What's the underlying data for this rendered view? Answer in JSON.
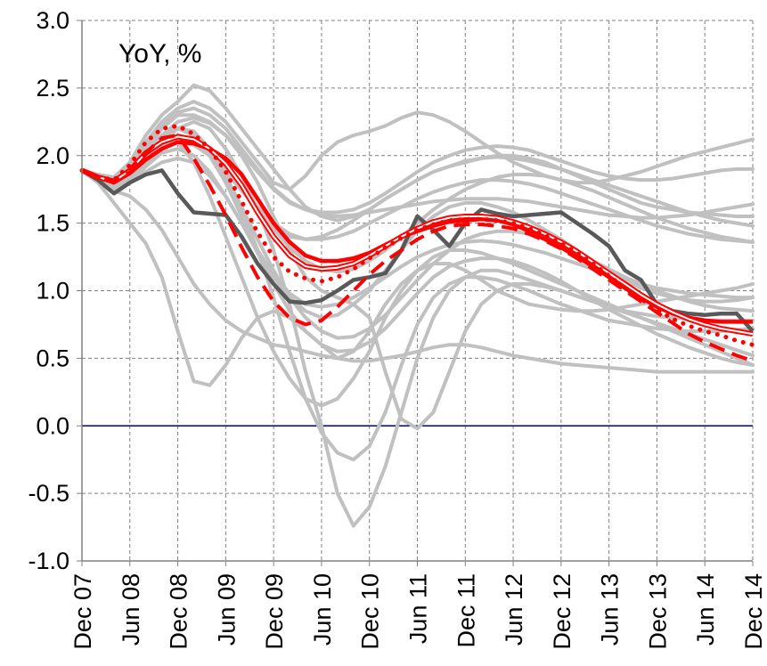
{
  "chart_data": {
    "type": "line",
    "title": "YoY, %",
    "xlabel": "",
    "ylabel": "",
    "ylim": [
      -1.0,
      3.0
    ],
    "yticks": [
      "3.0",
      "2.5",
      "2.0",
      "1.5",
      "1.0",
      "0.5",
      "0.0",
      "-0.5",
      "-1.0"
    ],
    "categories": [
      "Dec 07",
      "Jun 08",
      "Dec 08",
      "Jun 09",
      "Dec 09",
      "Jun 10",
      "Dec 10",
      "Jun 11",
      "Dec 11",
      "Jun 12",
      "Dec 12",
      "Jun 13",
      "Dec 13",
      "Jun 14",
      "Dec 14"
    ],
    "grid": true,
    "legend": "none",
    "x": [
      0,
      0.333,
      0.667,
      1,
      1.333,
      1.667,
      2,
      2.333,
      2.667,
      3,
      3.333,
      3.667,
      4,
      4.333,
      4.667,
      5,
      5.333,
      5.667,
      6,
      6.333,
      6.667,
      7,
      7.333,
      7.667,
      8,
      8.333,
      8.667,
      9,
      9.333,
      9.667,
      10,
      10.333,
      10.667,
      11,
      11.333,
      11.667,
      12,
      12.333,
      12.667,
      13,
      13.333,
      13.667,
      14
    ],
    "grey_series": [
      {
        "color": "#c0c0c0",
        "values": [
          1.89,
          1.85,
          1.8,
          1.95,
          2.15,
          2.3,
          2.4,
          2.52,
          2.48,
          2.35,
          2.2,
          2.05,
          1.9,
          1.75,
          1.62,
          1.55,
          1.52,
          1.55,
          1.6,
          1.68,
          1.75,
          1.82,
          1.88,
          1.92,
          1.95,
          1.98,
          2.0,
          2.0,
          1.98,
          1.95,
          1.9,
          1.85,
          1.8,
          1.75,
          1.7,
          1.65,
          1.62,
          1.6,
          1.58,
          1.57,
          1.56,
          1.55,
          1.55
        ]
      },
      {
        "color": "#c0c0c0",
        "values": [
          1.89,
          1.84,
          1.78,
          1.9,
          2.05,
          2.15,
          2.2,
          2.15,
          2.0,
          1.8,
          1.55,
          1.3,
          1.1,
          0.95,
          0.85,
          0.8,
          0.82,
          0.9,
          1.0,
          1.15,
          1.3,
          1.45,
          1.55,
          1.62,
          1.65,
          1.65,
          1.62,
          1.58,
          1.52,
          1.45,
          1.38,
          1.3,
          1.22,
          1.15,
          1.08,
          1.02,
          0.98,
          0.95,
          0.93,
          0.92,
          0.92,
          0.93,
          0.95
        ]
      },
      {
        "color": "#c0c0c0",
        "values": [
          1.89,
          1.8,
          1.65,
          1.5,
          1.35,
          1.1,
          0.7,
          0.33,
          0.3,
          0.45,
          0.65,
          0.8,
          0.85,
          0.8,
          0.7,
          0.6,
          0.5,
          0.55,
          0.7,
          0.9,
          1.05,
          1.15,
          1.2,
          1.2,
          1.15,
          1.08,
          1.0,
          0.95,
          0.9,
          0.88,
          0.86,
          0.85,
          0.85,
          0.86,
          0.88,
          0.9,
          0.92,
          0.94,
          0.96,
          0.98,
          1.0,
          1.02,
          1.05
        ]
      },
      {
        "color": "#c0c0c0",
        "values": [
          1.89,
          1.82,
          1.75,
          1.8,
          1.95,
          2.1,
          2.2,
          2.25,
          2.2,
          2.05,
          1.85,
          1.6,
          1.3,
          0.9,
          0.4,
          0.0,
          -0.5,
          -0.74,
          -0.6,
          -0.3,
          0.1,
          0.5,
          0.8,
          1.0,
          1.1,
          1.15,
          1.15,
          1.12,
          1.08,
          1.04,
          1.0,
          0.96,
          0.92,
          0.88,
          0.85,
          0.83,
          0.81,
          0.8,
          0.79,
          0.78,
          0.78,
          0.78,
          0.78
        ]
      },
      {
        "color": "#c0c0c0",
        "values": [
          1.89,
          1.83,
          1.78,
          1.85,
          2.0,
          2.12,
          2.2,
          2.18,
          2.05,
          1.85,
          1.6,
          1.3,
          0.95,
          0.55,
          0.2,
          -0.05,
          -0.2,
          -0.25,
          -0.15,
          0.1,
          0.45,
          0.75,
          0.95,
          1.05,
          1.1,
          1.1,
          1.08,
          1.04,
          1.0,
          0.95,
          0.9,
          0.86,
          0.82,
          0.78,
          0.76,
          0.74,
          0.72,
          0.71,
          0.7,
          0.7,
          0.7,
          0.71,
          0.72
        ]
      },
      {
        "color": "#c0c0c0",
        "values": [
          1.89,
          1.84,
          1.8,
          1.9,
          2.05,
          2.15,
          2.1,
          1.95,
          1.7,
          1.4,
          1.1,
          0.8,
          0.55,
          0.35,
          0.2,
          0.15,
          0.2,
          0.35,
          0.55,
          0.8,
          1.0,
          1.15,
          1.25,
          1.3,
          1.3,
          1.28,
          1.24,
          1.2,
          1.15,
          1.1,
          1.05,
          1.0,
          0.95,
          0.9,
          0.85,
          0.8,
          0.75,
          0.7,
          0.65,
          0.6,
          0.55,
          0.5,
          0.45
        ]
      },
      {
        "color": "#c0c0c0",
        "values": [
          1.89,
          1.85,
          1.82,
          1.9,
          2.05,
          2.2,
          2.3,
          2.3,
          2.25,
          2.15,
          2.0,
          1.8,
          1.55,
          1.3,
          1.1,
          1.0,
          0.95,
          0.9,
          0.8,
          0.4,
          0.05,
          -0.02,
          0.1,
          0.4,
          0.7,
          0.9,
          1.0,
          1.05,
          1.05,
          1.03,
          1.0,
          0.96,
          0.92,
          0.88,
          0.84,
          0.8,
          0.76,
          0.72,
          0.68,
          0.64,
          0.6,
          0.56,
          0.52
        ]
      },
      {
        "color": "#c0c0c0",
        "values": [
          1.89,
          1.86,
          1.84,
          1.95,
          2.1,
          2.25,
          2.35,
          2.4,
          2.35,
          2.25,
          2.1,
          1.95,
          1.8,
          1.75,
          1.85,
          2.0,
          2.1,
          2.15,
          2.18,
          2.22,
          2.28,
          2.32,
          2.3,
          2.25,
          2.18,
          2.1,
          2.02,
          1.95,
          1.9,
          1.85,
          1.82,
          1.8,
          1.8,
          1.82,
          1.85,
          1.88,
          1.92,
          1.96,
          2.0,
          2.03,
          2.06,
          2.09,
          2.12
        ]
      },
      {
        "color": "#c0c0c0",
        "values": [
          1.89,
          1.82,
          1.74,
          1.7,
          1.6,
          1.45,
          1.25,
          1.05,
          0.9,
          0.78,
          0.7,
          0.65,
          0.6,
          0.58,
          0.55,
          0.52,
          0.5,
          0.48,
          0.48,
          0.5,
          0.52,
          0.55,
          0.58,
          0.6,
          0.6,
          0.58,
          0.55,
          0.52,
          0.5,
          0.48,
          0.46,
          0.45,
          0.44,
          0.43,
          0.42,
          0.41,
          0.4,
          0.4,
          0.4,
          0.4,
          0.4,
          0.4,
          0.4
        ]
      },
      {
        "color": "#c0c0c0",
        "values": [
          1.89,
          1.83,
          1.76,
          1.82,
          1.95,
          2.05,
          2.1,
          2.08,
          2.0,
          1.88,
          1.74,
          1.6,
          1.48,
          1.4,
          1.38,
          1.4,
          1.45,
          1.52,
          1.6,
          1.68,
          1.75,
          1.82,
          1.88,
          1.92,
          1.96,
          1.98,
          1.99,
          1.98,
          1.96,
          1.93,
          1.9,
          1.86,
          1.82,
          1.78,
          1.74,
          1.7,
          1.66,
          1.62,
          1.58,
          1.55,
          1.52,
          1.5,
          1.48
        ]
      },
      {
        "color": "#c0c0c0",
        "values": [
          1.89,
          1.82,
          1.75,
          1.8,
          1.92,
          2.02,
          2.05,
          2.0,
          1.88,
          1.7,
          1.5,
          1.3,
          1.12,
          0.98,
          0.9,
          0.88,
          0.9,
          0.95,
          1.02,
          1.1,
          1.18,
          1.25,
          1.3,
          1.34,
          1.36,
          1.37,
          1.36,
          1.34,
          1.31,
          1.28,
          1.24,
          1.2,
          1.16,
          1.12,
          1.08,
          1.05,
          1.02,
          1.0,
          0.98,
          0.97,
          0.96,
          0.95,
          0.95
        ]
      },
      {
        "color": "#c0c0c0",
        "values": [
          1.89,
          1.84,
          1.8,
          1.88,
          2.02,
          2.15,
          2.25,
          2.28,
          2.24,
          2.15,
          2.02,
          1.88,
          1.75,
          1.65,
          1.6,
          1.58,
          1.58,
          1.6,
          1.65,
          1.72,
          1.8,
          1.88,
          1.95,
          2.0,
          2.04,
          2.06,
          2.07,
          2.06,
          2.04,
          2.0,
          1.96,
          1.92,
          1.88,
          1.85,
          1.83,
          1.82,
          1.82,
          1.83,
          1.85,
          1.87,
          1.89,
          1.9,
          1.9
        ]
      },
      {
        "color": "#c0c0c0",
        "values": [
          1.89,
          1.83,
          1.78,
          1.84,
          1.96,
          2.08,
          2.15,
          2.12,
          2.02,
          1.85,
          1.62,
          1.38,
          1.15,
          0.95,
          0.8,
          0.7,
          0.65,
          0.66,
          0.72,
          0.82,
          0.95,
          1.08,
          1.2,
          1.3,
          1.38,
          1.42,
          1.44,
          1.44,
          1.42,
          1.38,
          1.33,
          1.28,
          1.22,
          1.16,
          1.1,
          1.05,
          1.0,
          0.96,
          0.92,
          0.89,
          0.87,
          0.86,
          0.85
        ]
      },
      {
        "color": "#c0c0c0",
        "values": [
          1.89,
          1.85,
          1.82,
          1.92,
          2.08,
          2.22,
          2.32,
          2.35,
          2.3,
          2.2,
          2.05,
          1.9,
          1.76,
          1.66,
          1.6,
          1.56,
          1.55,
          1.56,
          1.58,
          1.6,
          1.62,
          1.64,
          1.66,
          1.67,
          1.68,
          1.68,
          1.68,
          1.67,
          1.66,
          1.64,
          1.62,
          1.6,
          1.58,
          1.56,
          1.55,
          1.54,
          1.54,
          1.55,
          1.56,
          1.58,
          1.6,
          1.62,
          1.64
        ]
      },
      {
        "color": "#c0c0c0",
        "values": [
          1.89,
          1.82,
          1.76,
          1.8,
          1.88,
          1.95,
          1.98,
          1.95,
          1.85,
          1.7,
          1.5,
          1.28,
          1.05,
          0.85,
          0.7,
          0.6,
          0.55,
          0.56,
          0.62,
          0.72,
          0.85,
          0.98,
          1.1,
          1.18,
          1.22,
          1.24,
          1.24,
          1.22,
          1.18,
          1.13,
          1.07,
          1.0,
          0.93,
          0.86,
          0.8,
          0.74,
          0.68,
          0.63,
          0.58,
          0.54,
          0.5,
          0.47,
          0.45
        ]
      },
      {
        "color": "#c0c0c0",
        "values": [
          1.89,
          1.83,
          1.79,
          1.86,
          1.98,
          2.08,
          2.12,
          2.1,
          2.02,
          1.9,
          1.76,
          1.62,
          1.5,
          1.42,
          1.38,
          1.38,
          1.4,
          1.44,
          1.5,
          1.56,
          1.62,
          1.68,
          1.73,
          1.77,
          1.8,
          1.82,
          1.82,
          1.81,
          1.79,
          1.76,
          1.72,
          1.68,
          1.64,
          1.6,
          1.56,
          1.52,
          1.48,
          1.45,
          1.42,
          1.4,
          1.38,
          1.37,
          1.36
        ]
      },
      {
        "color": "#c0c0c0",
        "values": [
          1.89,
          1.84,
          1.8,
          1.87,
          2.0,
          2.1,
          2.15,
          2.12,
          2.04,
          1.92,
          1.78,
          1.62,
          1.46,
          1.32,
          1.22,
          1.16,
          1.14,
          1.16,
          1.22,
          1.3,
          1.4,
          1.5,
          1.6,
          1.68,
          1.75,
          1.8,
          1.84,
          1.86,
          1.86,
          1.85,
          1.82,
          1.78,
          1.74,
          1.69,
          1.64,
          1.59,
          1.54,
          1.5,
          1.46,
          1.43,
          1.4,
          1.38,
          1.36
        ]
      }
    ],
    "highlight_series": [
      {
        "color": "#595959",
        "style": "solid-thick",
        "values": [
          1.89,
          1.82,
          1.72,
          1.8,
          1.86,
          1.89,
          1.72,
          1.58,
          1.57,
          1.56,
          1.4,
          1.2,
          1.05,
          0.92,
          0.91,
          0.93,
          1.0,
          1.08,
          1.1,
          1.13,
          1.3,
          1.55,
          1.45,
          1.33,
          1.5,
          1.6,
          1.57,
          1.55,
          1.56,
          1.57,
          1.58,
          1.5,
          1.42,
          1.33,
          1.15,
          1.08,
          0.9,
          0.85,
          0.83,
          0.82,
          0.83,
          0.83,
          0.7
        ]
      },
      {
        "color": "#ff0000",
        "style": "solid-thick",
        "values": [
          1.89,
          1.84,
          1.8,
          1.87,
          1.97,
          2.05,
          2.1,
          2.09,
          2.05,
          1.98,
          1.86,
          1.68,
          1.5,
          1.36,
          1.26,
          1.22,
          1.22,
          1.24,
          1.28,
          1.34,
          1.4,
          1.44,
          1.48,
          1.51,
          1.52,
          1.53,
          1.52,
          1.49,
          1.44,
          1.38,
          1.32,
          1.25,
          1.18,
          1.1,
          1.02,
          0.95,
          0.88,
          0.83,
          0.8,
          0.78,
          0.77,
          0.77,
          0.77
        ]
      },
      {
        "color": "#ff0000",
        "style": "double-thin",
        "values": [
          1.89,
          1.84,
          1.81,
          1.89,
          2.02,
          2.1,
          2.14,
          2.12,
          2.05,
          1.94,
          1.78,
          1.58,
          1.4,
          1.26,
          1.18,
          1.16,
          1.17,
          1.2,
          1.26,
          1.33,
          1.4,
          1.46,
          1.51,
          1.54,
          1.55,
          1.55,
          1.54,
          1.51,
          1.47,
          1.42,
          1.36,
          1.29,
          1.21,
          1.13,
          1.05,
          0.97,
          0.9,
          0.84,
          0.79,
          0.75,
          0.72,
          0.7,
          0.68
        ]
      },
      {
        "color": "#ff0000",
        "style": "dotted",
        "values": [
          1.89,
          1.84,
          1.82,
          1.93,
          2.1,
          2.2,
          2.22,
          2.16,
          2.05,
          1.88,
          1.66,
          1.43,
          1.25,
          1.14,
          1.09,
          1.07,
          1.1,
          1.16,
          1.24,
          1.32,
          1.39,
          1.45,
          1.49,
          1.52,
          1.53,
          1.53,
          1.52,
          1.5,
          1.46,
          1.41,
          1.35,
          1.28,
          1.2,
          1.11,
          1.02,
          0.94,
          0.86,
          0.79,
          0.74,
          0.7,
          0.67,
          0.63,
          0.6
        ]
      },
      {
        "color": "#ff0000",
        "style": "dashed",
        "values": [
          1.89,
          1.84,
          1.81,
          1.88,
          2.02,
          2.13,
          2.15,
          1.98,
          1.78,
          1.56,
          1.32,
          1.1,
          0.92,
          0.8,
          0.75,
          0.78,
          0.88,
          1.0,
          1.12,
          1.22,
          1.3,
          1.38,
          1.44,
          1.48,
          1.49,
          1.49,
          1.48,
          1.46,
          1.42,
          1.37,
          1.31,
          1.24,
          1.16,
          1.08,
          1.0,
          0.92,
          0.84,
          0.76,
          0.68,
          0.62,
          0.57,
          0.52,
          0.48
        ]
      }
    ]
  }
}
